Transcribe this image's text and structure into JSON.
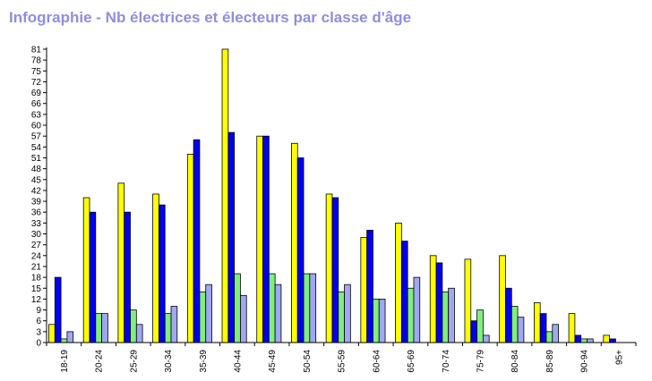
{
  "chart_data": {
    "type": "bar",
    "title": "Infographie - Nb électrices et électeurs par classe d'âge",
    "categories": [
      "18-19",
      "20-24",
      "25-29",
      "30-34",
      "35-39",
      "40-44",
      "45-49",
      "50-54",
      "55-59",
      "60-64",
      "65-69",
      "70-74",
      "75-79",
      "80-84",
      "85-89",
      "90-94",
      "95+"
    ],
    "series": [
      {
        "color": "#ffff00",
        "values": [
          5,
          40,
          44,
          41,
          52,
          81,
          57,
          55,
          41,
          29,
          33,
          24,
          23,
          24,
          11,
          8,
          2
        ]
      },
      {
        "color": "#0000ee",
        "values": [
          18,
          36,
          36,
          38,
          56,
          58,
          57,
          51,
          40,
          31,
          28,
          22,
          6,
          15,
          8,
          2,
          1
        ]
      },
      {
        "color": "#80ee80",
        "values": [
          1,
          8,
          9,
          8,
          14,
          19,
          19,
          19,
          14,
          12,
          15,
          14,
          9,
          10,
          3,
          1,
          0
        ]
      },
      {
        "color": "#a0a8f0",
        "values": [
          3,
          8,
          5,
          10,
          16,
          13,
          16,
          19,
          16,
          12,
          18,
          15,
          2,
          7,
          5,
          1,
          0
        ]
      }
    ],
    "ylim": [
      0,
      81
    ],
    "yticks": [
      0,
      3,
      6,
      9,
      12,
      15,
      18,
      21,
      24,
      27,
      30,
      33,
      36,
      39,
      42,
      45,
      48,
      51,
      54,
      57,
      60,
      63,
      66,
      69,
      72,
      75,
      78,
      81
    ],
    "grid": false
  }
}
